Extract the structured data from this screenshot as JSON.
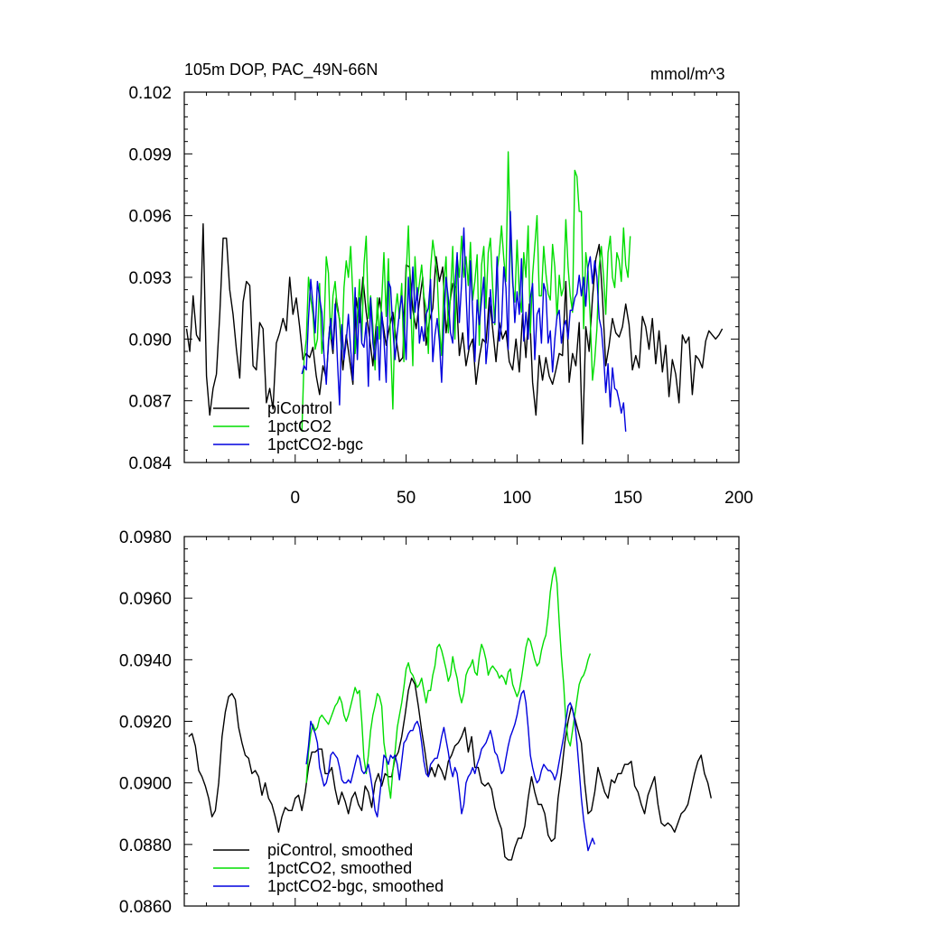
{
  "title": "105m DOP, PAC_49N-66N",
  "units": "mmol/m^3",
  "colors": {
    "piControl": "#000000",
    "1pctCO2": "#00dd00",
    "1pctCO2-bgc": "#0000dd",
    "axis": "#000000"
  },
  "chart_data": [
    {
      "type": "line",
      "panel": "top",
      "title": "105m DOP, PAC_49N-66N",
      "units": "mmol/m^3",
      "xlim": [
        -50,
        200
      ],
      "ylim": [
        0.084,
        0.102
      ],
      "xticks": [
        0,
        50,
        100,
        150,
        200
      ],
      "xtick_labels": [
        "0",
        "50",
        "100",
        "150",
        "200"
      ],
      "yticks": [
        0.084,
        0.087,
        0.09,
        0.093,
        0.096,
        0.099,
        0.102
      ],
      "ytick_labels": [
        "0.084",
        "0.087",
        "0.090",
        "0.093",
        "0.096",
        "0.099",
        "0.102"
      ],
      "legend": [
        "piControl",
        "1pctCO2",
        "1pctCO2-bgc"
      ],
      "series": [
        {
          "name": "piControl",
          "x_start": -49,
          "x_step": 1.5,
          "values": [
            0.0905,
            0.0894,
            0.0921,
            0.0902,
            0.0899,
            0.0956,
            0.0882,
            0.0863,
            0.0876,
            0.0883,
            0.0912,
            0.0949,
            0.0949,
            0.0924,
            0.0912,
            0.0895,
            0.0881,
            0.0918,
            0.0928,
            0.0926,
            0.0887,
            0.0885,
            0.0908,
            0.0905,
            0.0869,
            0.0876,
            0.0866,
            0.0898,
            0.0903,
            0.091,
            0.0904,
            0.093,
            0.0912,
            0.092,
            0.0906,
            0.089,
            0.0893,
            0.0891,
            0.0896,
            0.0882,
            0.0873,
            0.0887,
            0.0881,
            0.0906,
            0.0893,
            0.092,
            0.0909,
            0.0885,
            0.0902,
            0.089,
            0.0878,
            0.092,
            0.0908,
            0.093,
            0.0913,
            0.0901,
            0.0887,
            0.0907,
            0.092,
            0.0908,
            0.0897,
            0.0906,
            0.0913,
            0.09,
            0.0889,
            0.0891,
            0.0936,
            0.0935,
            0.0914,
            0.0905,
            0.0918,
            0.093,
            0.0897,
            0.0909,
            0.0915,
            0.094,
            0.0928,
            0.0935,
            0.0903,
            0.0916,
            0.0927,
            0.0925,
            0.0892,
            0.0903,
            0.0887,
            0.0896,
            0.09,
            0.0878,
            0.0891,
            0.09,
            0.0898,
            0.092,
            0.0905,
            0.0889,
            0.0908,
            0.09,
            0.0904,
            0.0889,
            0.0885,
            0.09,
            0.0884,
            0.0912,
            0.0891,
            0.0917,
            0.0879,
            0.0863,
            0.0892,
            0.088,
            0.0891,
            0.0882,
            0.0878,
            0.0885,
            0.0893,
            0.0892,
            0.0928,
            0.0879,
            0.0893,
            0.0887,
            0.0908,
            0.0849,
            0.0906,
            0.0894,
            0.092,
            0.0939,
            0.0946,
            0.092,
            0.0887,
            0.0897,
            0.091,
            0.0903,
            0.0901,
            0.0906,
            0.0917,
            0.0907,
            0.0885,
            0.0892,
            0.0886,
            0.0911,
            0.0906,
            0.0895,
            0.091,
            0.0888,
            0.0904,
            0.0884,
            0.0897,
            0.0872,
            0.089,
            0.0883,
            0.0869,
            0.0902,
            0.0898,
            0.0901,
            0.0873,
            0.0892,
            0.089,
            0.0886,
            0.0899,
            0.0904,
            0.0902,
            0.09,
            0.0902,
            0.0905
          ]
        },
        {
          "name": "1pctCO2",
          "x_start": 3,
          "x_step": 1,
          "values": [
            0.0855,
            0.089,
            0.09,
            0.093,
            0.092,
            0.0912,
            0.0895,
            0.09,
            0.0927,
            0.0893,
            0.0905,
            0.094,
            0.0932,
            0.09,
            0.0921,
            0.0928,
            0.0914,
            0.091,
            0.0895,
            0.0925,
            0.0938,
            0.093,
            0.0945,
            0.092,
            0.0893,
            0.091,
            0.0929,
            0.0899,
            0.0936,
            0.095,
            0.091,
            0.0921,
            0.0906,
            0.0885,
            0.092,
            0.09,
            0.0919,
            0.0942,
            0.0911,
            0.0939,
            0.0898,
            0.0866,
            0.0912,
            0.0922,
            0.091,
            0.0927,
            0.0889,
            0.0931,
            0.0955,
            0.0919,
            0.0887,
            0.094,
            0.0919,
            0.0927,
            0.0936,
            0.0921,
            0.0915,
            0.0893,
            0.0934,
            0.0948,
            0.094,
            0.093,
            0.0905,
            0.0892,
            0.0927,
            0.094,
            0.0903,
            0.0921,
            0.0945,
            0.09,
            0.094,
            0.093,
            0.095,
            0.093,
            0.094,
            0.0926,
            0.0947,
            0.0919,
            0.0928,
            0.0941,
            0.0897,
            0.0936,
            0.0945,
            0.0915,
            0.0942,
            0.0949,
            0.0925,
            0.0907,
            0.0933,
            0.0942,
            0.0955,
            0.0939,
            0.0928,
            0.0991,
            0.095,
            0.0927,
            0.0918,
            0.0948,
            0.0922,
            0.0913,
            0.0942,
            0.093,
            0.0955,
            0.0903,
            0.0931,
            0.0945,
            0.096,
            0.0921,
            0.0921,
            0.0945,
            0.0932,
            0.0922,
            0.0919,
            0.0946,
            0.0935,
            0.091,
            0.0931,
            0.0921,
            0.0925,
            0.0958,
            0.0935,
            0.0921,
            0.0913,
            0.0982,
            0.0979,
            0.0962,
            0.0962,
            0.0905,
            0.0942,
            0.0933,
            0.091,
            0.088,
            0.089,
            0.0905,
            0.0935,
            0.0945,
            0.093,
            0.0912,
            0.0942,
            0.095,
            0.093,
            0.0925,
            0.0942,
            0.0938,
            0.0928,
            0.0954,
            0.0936,
            0.093,
            0.095
          ]
        },
        {
          "name": "1pctCO2-bgc",
          "x_start": 3,
          "x_step": 1,
          "values": [
            0.0883,
            0.0887,
            0.0885,
            0.091,
            0.0929,
            0.0917,
            0.0903,
            0.0928,
            0.092,
            0.0913,
            0.0892,
            0.0878,
            0.0899,
            0.091,
            0.0895,
            0.0917,
            0.089,
            0.0868,
            0.0907,
            0.089,
            0.0899,
            0.0912,
            0.0895,
            0.088,
            0.0925,
            0.089,
            0.092,
            0.0898,
            0.0896,
            0.0908,
            0.0877,
            0.092,
            0.0898,
            0.089,
            0.0906,
            0.088,
            0.0913,
            0.09,
            0.0879,
            0.0928,
            0.0925,
            0.0905,
            0.089,
            0.0903,
            0.0913,
            0.0921,
            0.0909,
            0.089,
            0.093,
            0.091,
            0.0935,
            0.0913,
            0.0925,
            0.0898,
            0.0906,
            0.0899,
            0.0912,
            0.0915,
            0.0929,
            0.0889,
            0.0902,
            0.091,
            0.0899,
            0.0879,
            0.0908,
            0.093,
            0.092,
            0.0903,
            0.0898,
            0.0926,
            0.0942,
            0.0908,
            0.0927,
            0.0954,
            0.0923,
            0.0895,
            0.0938,
            0.0913,
            0.0889,
            0.0919,
            0.0907,
            0.0919,
            0.093,
            0.0888,
            0.09,
            0.0924,
            0.0908,
            0.0908,
            0.094,
            0.0899,
            0.0907,
            0.0935,
            0.0925,
            0.0895,
            0.0962,
            0.093,
            0.0908,
            0.0923,
            0.0912,
            0.0939,
            0.0899,
            0.0913,
            0.09,
            0.092,
            0.0927,
            0.089,
            0.0912,
            0.0915,
            0.0898,
            0.0927,
            0.0923,
            0.0898,
            0.0904,
            0.0884,
            0.09,
            0.0911,
            0.0914,
            0.0898,
            0.0906,
            0.0909,
            0.09,
            0.0914,
            0.0914,
            0.092,
            0.0922,
            0.0931,
            0.0921,
            0.093,
            0.0916,
            0.0935,
            0.094,
            0.0927,
            0.0938,
            0.093,
            0.091,
            0.0905,
            0.0892,
            0.0874,
            0.0888,
            0.0867,
            0.0886,
            0.0876,
            0.0875,
            0.087,
            0.0864,
            0.0869,
            0.0855
          ]
        }
      ]
    },
    {
      "type": "line",
      "panel": "bottom",
      "xlim": [
        -50,
        200
      ],
      "ylim": [
        0.086,
        0.098
      ],
      "xticks": [
        0,
        50,
        100,
        150,
        200
      ],
      "yticks": [
        0.086,
        0.088,
        0.09,
        0.092,
        0.094,
        0.096,
        0.098
      ],
      "ytick_labels": [
        "0.0860",
        "0.0880",
        "0.0900",
        "0.0920",
        "0.0940",
        "0.0960",
        "0.0980"
      ],
      "legend": [
        "piControl, smoothed",
        "1pctCO2, smoothed",
        "1pctCO2-bgc, smoothed"
      ],
      "series": [
        {
          "name": "piControl, smoothed",
          "x_start": -48,
          "x_step": 1.5,
          "values": [
            0.0915,
            0.0916,
            0.0912,
            0.0904,
            0.0902,
            0.0899,
            0.0895,
            0.0889,
            0.0891,
            0.09,
            0.0915,
            0.0923,
            0.0928,
            0.0929,
            0.0927,
            0.0918,
            0.0913,
            0.0909,
            0.0908,
            0.0903,
            0.0904,
            0.0902,
            0.0896,
            0.09,
            0.0895,
            0.0893,
            0.0889,
            0.0884,
            0.0889,
            0.0892,
            0.0891,
            0.0891,
            0.0895,
            0.0896,
            0.0891,
            0.0897,
            0.0905,
            0.091,
            0.091,
            0.0911,
            0.0911,
            0.0903,
            0.0903,
            0.0905,
            0.0898,
            0.0893,
            0.0897,
            0.0894,
            0.089,
            0.0895,
            0.0897,
            0.0893,
            0.0891,
            0.0899,
            0.0897,
            0.0892,
            0.09,
            0.0903,
            0.0899,
            0.0903,
            0.0902,
            0.0902,
            0.0908,
            0.091,
            0.0915,
            0.0922,
            0.093,
            0.0934,
            0.0932,
            0.0925,
            0.0917,
            0.091,
            0.0902,
            0.0905,
            0.0902,
            0.0906,
            0.0904,
            0.0901,
            0.0907,
            0.0909,
            0.0912,
            0.0913,
            0.0915,
            0.0918,
            0.091,
            0.0915,
            0.0905,
            0.0905,
            0.09,
            0.0899,
            0.09,
            0.0898,
            0.0892,
            0.0888,
            0.0885,
            0.0876,
            0.0875,
            0.0875,
            0.0879,
            0.0882,
            0.0882,
            0.0886,
            0.0895,
            0.0902,
            0.0897,
            0.0893,
            0.0893,
            0.089,
            0.0883,
            0.0881,
            0.0882,
            0.0895,
            0.0903,
            0.0913,
            0.092,
            0.0925,
            0.0921,
            0.0917,
            0.0913,
            0.09,
            0.089,
            0.0891,
            0.0897,
            0.0905,
            0.0901,
            0.0897,
            0.0895,
            0.0901,
            0.09,
            0.0903,
            0.0903,
            0.0906,
            0.0906,
            0.0907,
            0.0899,
            0.0897,
            0.0893,
            0.089,
            0.0896,
            0.0899,
            0.0902,
            0.0893,
            0.0887,
            0.0886,
            0.0887,
            0.0886,
            0.0884,
            0.0887,
            0.089,
            0.0891,
            0.0893,
            0.0898,
            0.0903,
            0.0907,
            0.0909,
            0.0903,
            0.09,
            0.0895
          ]
        },
        {
          "name": "1pctCO2, smoothed",
          "x_start": 5,
          "x_step": 1,
          "values": [
            0.09,
            0.091,
            0.0916,
            0.0919,
            0.0917,
            0.0918,
            0.0921,
            0.0922,
            0.0921,
            0.092,
            0.0919,
            0.0921,
            0.0923,
            0.0925,
            0.0926,
            0.0928,
            0.0926,
            0.0922,
            0.092,
            0.0922,
            0.0925,
            0.0928,
            0.0931,
            0.0929,
            0.093,
            0.092,
            0.0908,
            0.0903,
            0.0909,
            0.0917,
            0.0922,
            0.0925,
            0.0929,
            0.0928,
            0.0925,
            0.0913,
            0.0908,
            0.09,
            0.0895,
            0.0904,
            0.091,
            0.0918,
            0.0922,
            0.0926,
            0.0931,
            0.0937,
            0.0939,
            0.0936,
            0.0935,
            0.0933,
            0.0931,
            0.0932,
            0.0934,
            0.093,
            0.0926,
            0.093,
            0.093,
            0.0935,
            0.0938,
            0.0944,
            0.0945,
            0.0943,
            0.094,
            0.0937,
            0.0933,
            0.0935,
            0.0941,
            0.0937,
            0.0934,
            0.0929,
            0.0926,
            0.0929,
            0.0935,
            0.0937,
            0.0938,
            0.094,
            0.0936,
            0.0935,
            0.0941,
            0.0945,
            0.0943,
            0.094,
            0.0935,
            0.0937,
            0.0938,
            0.0937,
            0.0936,
            0.0934,
            0.0935,
            0.0934,
            0.0932,
            0.0936,
            0.0937,
            0.0932,
            0.093,
            0.0928,
            0.093,
            0.0934,
            0.0939,
            0.0944,
            0.0947,
            0.0946,
            0.0943,
            0.094,
            0.0938,
            0.0939,
            0.0943,
            0.0946,
            0.0948,
            0.0954,
            0.0962,
            0.0967,
            0.097,
            0.0965,
            0.0952,
            0.0941,
            0.0932,
            0.092,
            0.0914,
            0.0912,
            0.0917,
            0.0922,
            0.0927,
            0.0932,
            0.0934,
            0.0935,
            0.0937,
            0.094,
            0.0942
          ]
        },
        {
          "name": "1pctCO2-bgc, smoothed",
          "x_start": 5,
          "x_step": 1,
          "values": [
            0.0906,
            0.0912,
            0.092,
            0.0918,
            0.0916,
            0.0913,
            0.0905,
            0.0902,
            0.0899,
            0.09,
            0.0903,
            0.0909,
            0.091,
            0.0909,
            0.0908,
            0.0905,
            0.0901,
            0.09,
            0.09,
            0.0901,
            0.09,
            0.0903,
            0.0906,
            0.0909,
            0.0908,
            0.0904,
            0.0903,
            0.0904,
            0.0906,
            0.0902,
            0.0897,
            0.0891,
            0.0889,
            0.0895,
            0.0902,
            0.0909,
            0.0908,
            0.0906,
            0.0909,
            0.0908,
            0.0909,
            0.0906,
            0.0901,
            0.0907,
            0.0913,
            0.0914,
            0.0916,
            0.0917,
            0.0917,
            0.0919,
            0.092,
            0.0918,
            0.0913,
            0.0907,
            0.0903,
            0.0902,
            0.0906,
            0.0907,
            0.0908,
            0.0908,
            0.0911,
            0.0915,
            0.0918,
            0.0914,
            0.091,
            0.0905,
            0.0902,
            0.0905,
            0.0903,
            0.0897,
            0.089,
            0.0893,
            0.09,
            0.0902,
            0.0903,
            0.0905,
            0.0903,
            0.0906,
            0.0908,
            0.0911,
            0.0912,
            0.0913,
            0.0915,
            0.0917,
            0.0914,
            0.091,
            0.0909,
            0.0906,
            0.0903,
            0.0904,
            0.0908,
            0.0912,
            0.0915,
            0.0917,
            0.0919,
            0.0922,
            0.0926,
            0.0929,
            0.093,
            0.0926,
            0.0918,
            0.0909,
            0.0905,
            0.0902,
            0.09,
            0.0901,
            0.0904,
            0.0906,
            0.0905,
            0.0904,
            0.0904,
            0.0903,
            0.0901,
            0.0903,
            0.0907,
            0.0911,
            0.0915,
            0.092,
            0.0925,
            0.0926,
            0.0924,
            0.092,
            0.0913,
            0.0904,
            0.0895,
            0.0888,
            0.0883,
            0.0878,
            0.088,
            0.0882,
            0.088
          ]
        }
      ]
    }
  ]
}
